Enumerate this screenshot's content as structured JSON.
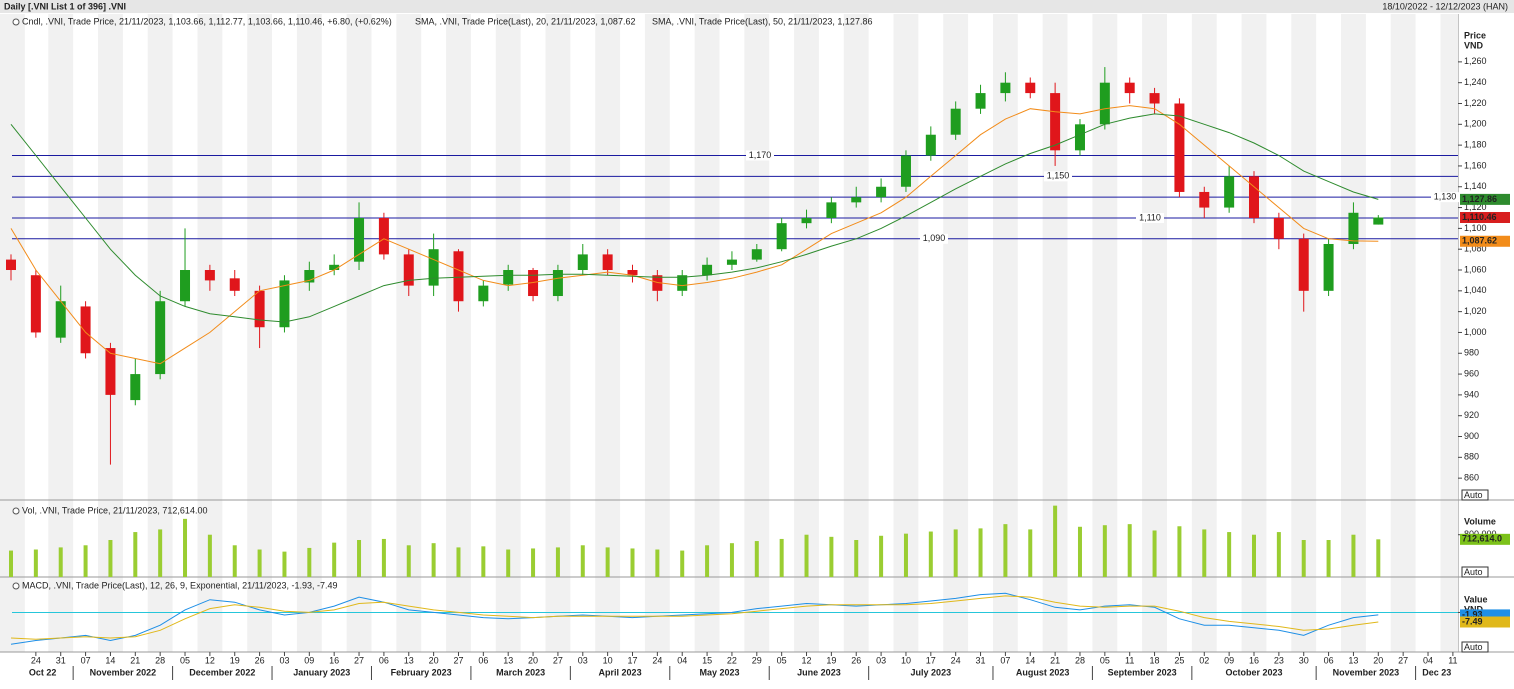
{
  "chart_data": [
    {
      "type": "candlestick",
      "title": "Daily [.VNI List 1 of 396] .VNI",
      "subtitle": "18/10/2022 - 12/12/2023 (HAN)",
      "legend": "Cndl, .VNI, Trade Price, 21/11/2023, 1,103.66, 1,112.77, 1,103.66, 1,110.46, +6.80, (+0.62%)",
      "ylabel": [
        "Price",
        "VND"
      ],
      "scale_button": "Auto",
      "categories": [
        null,
        "24",
        "31",
        "07",
        "14",
        "21",
        "28",
        "05",
        "12",
        "19",
        "26",
        "03",
        "09",
        "16",
        "27",
        "06",
        "13",
        "20",
        "27",
        "06",
        "13",
        "20",
        "27",
        "03",
        "10",
        "17",
        "24",
        "04",
        "15",
        "22",
        "29",
        "05",
        "12",
        "19",
        "26",
        "03",
        "10",
        "17",
        "24",
        "31",
        "07",
        "14",
        "21",
        "28",
        "05",
        "11",
        "18",
        "25",
        "02",
        "09",
        "16",
        "23",
        "30",
        "06",
        "13",
        "20",
        "27",
        "04",
        "11"
      ],
      "x_groups": [
        {
          "label": "Oct 22",
          "count": 3
        },
        {
          "label": "November 2022",
          "count": 4
        },
        {
          "label": "December 2022",
          "count": 4
        },
        {
          "label": "January 2023",
          "count": 4
        },
        {
          "label": "February 2023",
          "count": 4
        },
        {
          "label": "March 2023",
          "count": 4
        },
        {
          "label": "April 2023",
          "count": 4
        },
        {
          "label": "May 2023",
          "count": 4
        },
        {
          "label": "June 2023",
          "count": 4
        },
        {
          "label": "July 2023",
          "count": 5
        },
        {
          "label": "August 2023",
          "count": 4
        },
        {
          "label": "September 2023",
          "count": 4
        },
        {
          "label": "October 2023",
          "count": 5
        },
        {
          "label": "November 2023",
          "count": 4
        },
        {
          "label": "Dec 23",
          "count": 2
        }
      ],
      "open": [
        1070,
        1055,
        995,
        1025,
        985,
        935,
        960,
        1030,
        1060,
        1052,
        1040,
        1005,
        1048,
        1060,
        1068,
        1110,
        1075,
        1045,
        1078,
        1030,
        1046,
        1060,
        1035,
        1060,
        1075,
        1060,
        1055,
        1040,
        1055,
        1065,
        1070,
        1080,
        1105,
        1110,
        1125,
        1130,
        1140,
        1170,
        1190,
        1215,
        1230,
        1240,
        1230,
        1175,
        1200,
        1240,
        1230,
        1220,
        1135,
        1120,
        1150,
        1110,
        1090,
        1040,
        1085,
        1103.66,
        null,
        null,
        null
      ],
      "high": [
        1075,
        1060,
        1045,
        1030,
        990,
        975,
        1040,
        1100,
        1065,
        1060,
        1045,
        1055,
        1068,
        1075,
        1125,
        1115,
        1080,
        1095,
        1080,
        1050,
        1065,
        1062,
        1065,
        1085,
        1080,
        1065,
        1060,
        1060,
        1072,
        1078,
        1085,
        1110,
        1118,
        1130,
        1140,
        1148,
        1175,
        1198,
        1222,
        1238,
        1250,
        1245,
        1240,
        1205,
        1255,
        1245,
        1235,
        1225,
        1140,
        1160,
        1155,
        1115,
        1095,
        1090,
        1125,
        1112.77,
        null,
        null,
        null
      ],
      "low": [
        1050,
        995,
        990,
        975,
        873,
        930,
        955,
        1025,
        1040,
        1035,
        985,
        1000,
        1040,
        1055,
        1060,
        1070,
        1035,
        1035,
        1020,
        1025,
        1040,
        1030,
        1030,
        1055,
        1055,
        1048,
        1030,
        1035,
        1050,
        1060,
        1068,
        1078,
        1100,
        1105,
        1120,
        1125,
        1135,
        1165,
        1185,
        1210,
        1222,
        1225,
        1160,
        1170,
        1195,
        1220,
        1210,
        1130,
        1110,
        1115,
        1105,
        1080,
        1020,
        1035,
        1080,
        1103.66,
        null,
        null,
        null
      ],
      "close": [
        1060,
        1000,
        1030,
        980,
        940,
        960,
        1030,
        1060,
        1050,
        1040,
        1005,
        1050,
        1060,
        1065,
        1110,
        1075,
        1045,
        1080,
        1030,
        1045,
        1060,
        1035,
        1060,
        1075,
        1060,
        1055,
        1040,
        1055,
        1065,
        1070,
        1080,
        1105,
        1110,
        1125,
        1130,
        1140,
        1170,
        1190,
        1215,
        1230,
        1240,
        1230,
        1175,
        1200,
        1240,
        1230,
        1220,
        1135,
        1120,
        1150,
        1110,
        1090,
        1040,
        1085,
        1115,
        1110.46,
        null,
        null,
        null
      ],
      "close_last_label": "1,110.46",
      "up_color": "#1f9d1f",
      "down_color": "#e0161b",
      "close_tag_color": "#d81e1e",
      "series": [
        {
          "name": "SMA, .VNI, Trade Price(Last), 20, 21/11/2023, 1,087.62",
          "color": "#f28c1a",
          "last_label": "1,087.62",
          "values": [
            1100,
            1060,
            1030,
            1000,
            980,
            975,
            970,
            985,
            1000,
            1020,
            1040,
            1045,
            1050,
            1060,
            1075,
            1090,
            1080,
            1070,
            1060,
            1050,
            1045,
            1048,
            1052,
            1055,
            1058,
            1055,
            1048,
            1045,
            1048,
            1052,
            1058,
            1065,
            1080,
            1095,
            1105,
            1115,
            1130,
            1150,
            1170,
            1190,
            1205,
            1215,
            1212,
            1210,
            1215,
            1218,
            1215,
            1200,
            1180,
            1160,
            1140,
            1120,
            1100,
            1090,
            1088,
            1087.62,
            null,
            null,
            null
          ]
        },
        {
          "name": "SMA, .VNI, Trade Price(Last), 50, 21/11/2023, 1,127.86",
          "color": "#2e8b2e",
          "last_label": "1,127.86",
          "values": [
            1200,
            1170,
            1140,
            1110,
            1080,
            1055,
            1035,
            1025,
            1018,
            1015,
            1012,
            1010,
            1015,
            1025,
            1035,
            1045,
            1050,
            1052,
            1053,
            1054,
            1055,
            1055,
            1056,
            1056,
            1055,
            1054,
            1053,
            1053,
            1055,
            1058,
            1062,
            1068,
            1075,
            1083,
            1090,
            1100,
            1112,
            1125,
            1138,
            1150,
            1162,
            1172,
            1180,
            1190,
            1200,
            1206,
            1210,
            1208,
            1200,
            1192,
            1182,
            1170,
            1155,
            1145,
            1135,
            1127.86,
            null,
            null,
            null
          ]
        }
      ],
      "hlines": [
        {
          "value": 1170,
          "label": "1,170"
        },
        {
          "value": 1150,
          "label": "1,150"
        },
        {
          "value": 1130,
          "label": "1,130"
        },
        {
          "value": 1110,
          "label": "1,110"
        },
        {
          "value": 1090,
          "label": "1,090"
        }
      ],
      "hline_color": "#1a1aa0",
      "ylim": [
        839,
        1306
      ],
      "yticks": [
        860,
        880,
        900,
        920,
        940,
        960,
        980,
        {
          "value": 1000,
          "label": "1,000"
        },
        {
          "value": 1020,
          "label": "1,020"
        },
        {
          "value": 1040,
          "label": "1,040"
        },
        {
          "value": 1060,
          "label": "1,060"
        },
        {
          "value": 1080,
          "label": "1,080"
        },
        {
          "value": 1100,
          "label": "1,100"
        },
        {
          "value": 1120,
          "label": "1,120"
        },
        {
          "value": 1140,
          "label": "1,140"
        },
        {
          "value": 1160,
          "label": "1,160"
        },
        {
          "value": 1180,
          "label": "1,180"
        },
        {
          "value": 1200,
          "label": "1,200"
        },
        {
          "value": 1220,
          "label": "1,220"
        },
        {
          "value": 1240,
          "label": "1,240"
        },
        {
          "value": 1260,
          "label": "1,260"
        }
      ]
    },
    {
      "type": "bar",
      "legend": "Vol, .VNI, Trade Price, 21/11/2023, 712,614.00",
      "ylabel": [
        "Volume"
      ],
      "scale_button": "Auto",
      "series": [
        {
          "name": "Vol",
          "color": "#9acd32",
          "last_label": "712,614.0",
          "values": [
            500000,
            520000,
            560000,
            600000,
            700000,
            850000,
            900000,
            1100000,
            800000,
            600000,
            520000,
            480000,
            550000,
            650000,
            700000,
            720000,
            600000,
            640000,
            560000,
            580000,
            520000,
            540000,
            560000,
            600000,
            560000,
            540000,
            520000,
            500000,
            600000,
            640000,
            680000,
            720000,
            800000,
            760000,
            700000,
            780000,
            820000,
            860000,
            900000,
            920000,
            1000000,
            900000,
            1350000,
            950000,
            980000,
            1000000,
            880000,
            960000,
            900000,
            850000,
            800000,
            850000,
            700000,
            700000,
            800000,
            712614,
            null,
            null,
            null
          ]
        }
      ],
      "tag_color": "#7cc21a",
      "ylim": [
        0,
        1400000
      ],
      "yticks": [
        {
          "value": 800000,
          "label": "800,000"
        }
      ]
    },
    {
      "type": "line",
      "legend": "MACD, .VNI, Trade Price(Last), 12, 26, 9, Exponential, 21/11/2023, -1.93, -7.49",
      "ylabel": [
        "Value",
        "VND"
      ],
      "scale_button": "Auto",
      "series": [
        {
          "name": "MACD",
          "color": "#1e8fe6",
          "last_label": "-1.93",
          "values": [
            -25,
            -22,
            -20,
            -18,
            -22,
            -18,
            -10,
            2,
            10,
            8,
            2,
            -2,
            0,
            5,
            12,
            8,
            2,
            0,
            -2,
            -4,
            -5,
            -4,
            -3,
            -2,
            -3,
            -4,
            -3,
            -2,
            -1,
            0,
            3,
            5,
            7,
            6,
            5,
            6,
            7,
            9,
            11,
            14,
            15,
            10,
            4,
            2,
            5,
            6,
            4,
            -5,
            -10,
            -10,
            -12,
            -14,
            -18,
            -10,
            -4,
            -1.93,
            null,
            null,
            null
          ]
        },
        {
          "name": "Signal",
          "color": "#e0b81a",
          "last_label": "-7.49",
          "values": [
            -20,
            -21,
            -20,
            -19,
            -20,
            -19,
            -14,
            -5,
            3,
            6,
            4,
            1,
            0,
            2,
            7,
            8,
            5,
            2,
            0,
            -2,
            -3,
            -4,
            -3,
            -3,
            -3,
            -3,
            -3,
            -3,
            -2,
            -1,
            1,
            3,
            5,
            6,
            6,
            6,
            6,
            7,
            9,
            11,
            13,
            12,
            8,
            5,
            4,
            5,
            5,
            1,
            -4,
            -7,
            -9,
            -11,
            -14,
            -13,
            -10,
            -7.49,
            null,
            null,
            null
          ]
        }
      ],
      "grid": true,
      "grid_color": "#26c6da",
      "ylim": [
        -31,
        27
      ],
      "yticks": [
        0
      ]
    }
  ]
}
